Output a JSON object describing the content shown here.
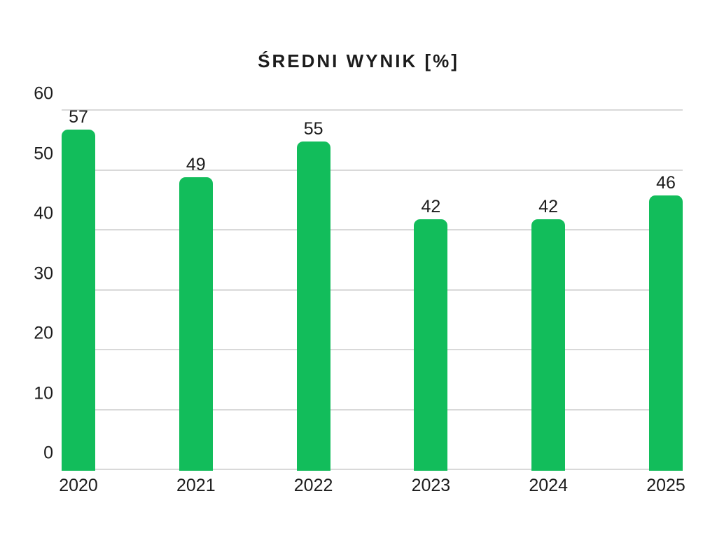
{
  "title": "ŚREDNI WYNIK [%]",
  "chart_data": {
    "type": "bar",
    "title": "ŚREDNI WYNIK [%]",
    "categories": [
      "2020",
      "2021",
      "2022",
      "2023",
      "2024",
      "2025"
    ],
    "values": [
      57,
      49,
      55,
      42,
      42,
      46
    ],
    "xlabel": "",
    "ylabel": "",
    "ylim": [
      0,
      60
    ],
    "yticks": [
      0,
      10,
      20,
      30,
      40,
      50,
      60
    ],
    "grid": true,
    "legend": "none",
    "bar_color": "#12bd5b",
    "gridline_color": "#d9d9d9",
    "text_color": "#1c1c1c",
    "background_color": "#ffffff"
  }
}
